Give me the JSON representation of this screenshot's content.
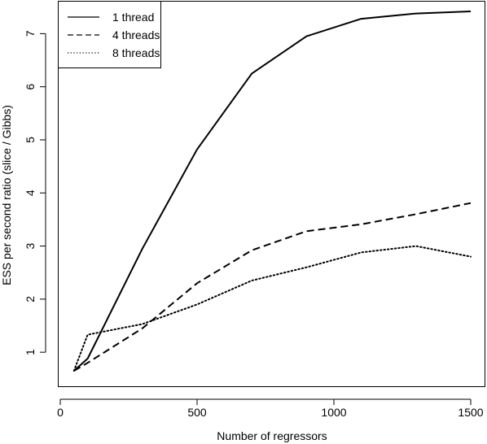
{
  "chart_data": {
    "type": "line",
    "title": "",
    "xlabel": "Number of regressors",
    "ylabel": "ESS per second ratio (slice / Gibbs)",
    "xlim": [
      0,
      1500
    ],
    "ylim": [
      0.65,
      7.45
    ],
    "xticks": [
      0,
      500,
      1000,
      1500
    ],
    "yticks": [
      1,
      2,
      3,
      4,
      5,
      6,
      7
    ],
    "grid": false,
    "legend_position": "top-left",
    "series": [
      {
        "name": "1 thread",
        "style": "solid",
        "x": [
          50,
          100,
          300,
          500,
          700,
          900,
          1100,
          1300,
          1500
        ],
        "y": [
          0.65,
          0.88,
          2.95,
          4.82,
          6.25,
          6.95,
          7.28,
          7.38,
          7.42
        ]
      },
      {
        "name": "4 threads",
        "style": "dashed",
        "x": [
          50,
          100,
          300,
          500,
          700,
          900,
          1100,
          1300,
          1500
        ],
        "y": [
          0.65,
          0.8,
          1.45,
          2.3,
          2.92,
          3.28,
          3.41,
          3.6,
          3.81
        ]
      },
      {
        "name": "8 threads",
        "style": "dotted",
        "x": [
          50,
          100,
          300,
          500,
          700,
          900,
          1100,
          1300,
          1500
        ],
        "y": [
          0.65,
          1.33,
          1.53,
          1.9,
          2.35,
          2.6,
          2.88,
          3.0,
          2.8
        ]
      }
    ]
  }
}
